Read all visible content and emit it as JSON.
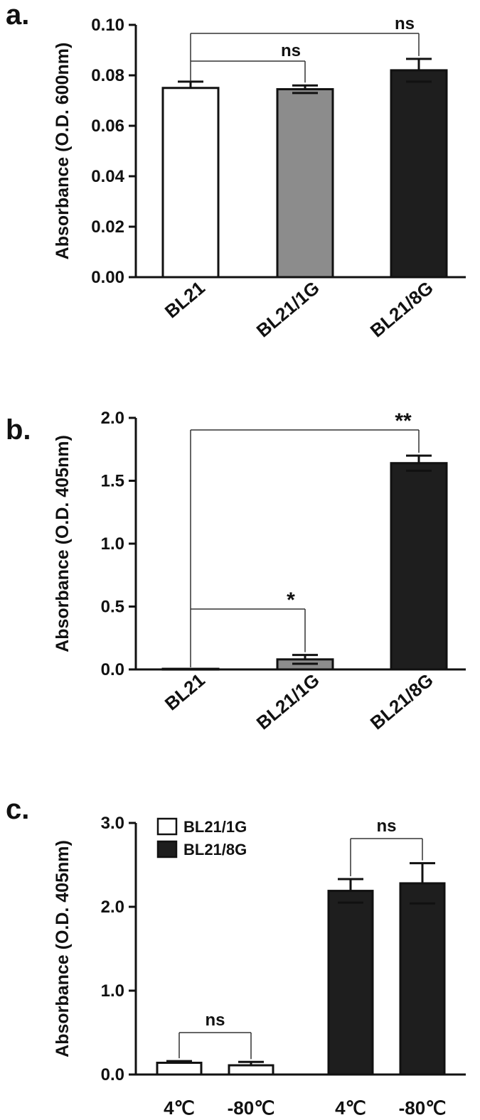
{
  "chart_data": [
    {
      "type": "bar",
      "panel": "a.",
      "ylabel": "Absorbance (O.D. 600nm)",
      "ylim": [
        0,
        0.1
      ],
      "yticks": [
        "0.00",
        "0.02",
        "0.04",
        "0.06",
        "0.08",
        "0.10"
      ],
      "categories": [
        "BL21",
        "BL21/1G",
        "BL21/8G"
      ],
      "values": [
        0.075,
        0.0745,
        0.082
      ],
      "errors": [
        0.0025,
        0.0015,
        0.0045
      ],
      "bar_colors": [
        "#ffffff",
        "#8c8c8c",
        "#1e1e1e"
      ],
      "annotations": [
        {
          "text": "ns",
          "from": 0,
          "to": 1
        },
        {
          "text": "ns",
          "from": 0,
          "to": 2
        }
      ]
    },
    {
      "type": "bar",
      "panel": "b.",
      "ylabel": "Absorbance (O.D. 405nm)",
      "ylim": [
        0,
        2.0
      ],
      "yticks": [
        "0.0",
        "0.5",
        "1.0",
        "1.5",
        "2.0"
      ],
      "categories": [
        "BL21",
        "BL21/1G",
        "BL21/8G"
      ],
      "values": [
        0.005,
        0.08,
        1.64
      ],
      "errors": [
        0,
        0.035,
        0.06
      ],
      "bar_colors": [
        "#ffffff",
        "#8c8c8c",
        "#1e1e1e"
      ],
      "annotations": [
        {
          "text": "*",
          "from": 0,
          "to": 1
        },
        {
          "text": "**",
          "from": 0,
          "to": 2
        }
      ]
    },
    {
      "type": "bar",
      "panel": "c.",
      "ylabel": "Absorbance (O.D. 405nm)",
      "ylim": [
        0,
        3.0
      ],
      "yticks": [
        "0.0",
        "1.0",
        "2.0",
        "3.0"
      ],
      "categories": [
        "4℃",
        "-80℃",
        "4℃",
        "-80℃"
      ],
      "values": [
        0.14,
        0.11,
        2.19,
        2.28
      ],
      "errors": [
        0.02,
        0.04,
        0.14,
        0.24
      ],
      "bar_colors": [
        "#ffffff",
        "#ffffff",
        "#1e1e1e",
        "#1e1e1e"
      ],
      "legend": [
        {
          "name": "BL21/1G",
          "color": "#ffffff"
        },
        {
          "name": "BL21/8G",
          "color": "#1e1e1e"
        }
      ],
      "legend_position": "top-left",
      "annotations": [
        {
          "text": "ns",
          "from": 0,
          "to": 1
        },
        {
          "text": "ns",
          "from": 2,
          "to": 3
        }
      ]
    }
  ]
}
